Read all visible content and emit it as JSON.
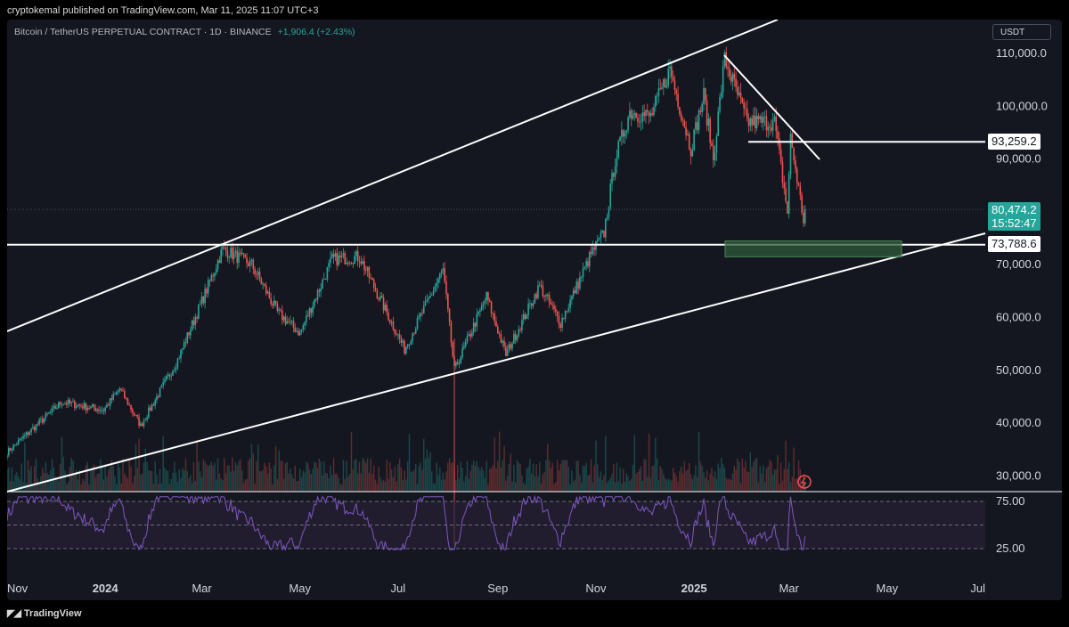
{
  "publisher_line": "cryptokemal published on TradingView.com, Mar 11, 2025 11:07 UTC+3",
  "symbol": {
    "description": "Bitcoin / TetherUS PERPETUAL CONTRACT · 1D · BINANCE",
    "change": "+1,906.4 (+2.43%)"
  },
  "currency_button": "USDT",
  "footer": {
    "logo_icon": "tradingview-logo-icon",
    "brand": "TradingView"
  },
  "colors": {
    "background": "#151720",
    "up": "#26a69a",
    "down": "#ef5350",
    "rsi_line": "#7e57c2",
    "rsi_band": "#2a2238",
    "drawing": "#ffffff",
    "zone": "#2e5a38"
  },
  "price_labels": {
    "level_93259": "93,259.2",
    "current_price": "80,474.2",
    "countdown": "15:52:47",
    "level_73788": "73,788.6"
  },
  "chart_data": [
    {
      "type": "candlestick",
      "title": "Bitcoin / TetherUS PERPETUAL CONTRACT · 1D · BINANCE",
      "x_ticks": [
        "Nov",
        "2024",
        "Mar",
        "May",
        "Jul",
        "Sep",
        "Nov",
        "2025",
        "Mar",
        "May",
        "Jul"
      ],
      "y_ticks": [
        "110,000.0",
        "100,000.0",
        "90,000.0",
        "80,000.0",
        "70,000.0",
        "60,000.0",
        "50,000.0",
        "40,000.0",
        "30,000.0"
      ],
      "ylim": [
        28000,
        112000
      ],
      "grid": false,
      "approx_path": [
        [
          "2023-11-01",
          34500
        ],
        [
          "2023-12-05",
          44000
        ],
        [
          "2023-12-31",
          42500
        ],
        [
          "2024-01-10",
          46500
        ],
        [
          "2024-01-23",
          39500
        ],
        [
          "2024-02-15",
          52000
        ],
        [
          "2024-03-05",
          66000
        ],
        [
          "2024-03-14",
          73000
        ],
        [
          "2024-04-01",
          70000
        ],
        [
          "2024-04-17",
          61000
        ],
        [
          "2024-05-01",
          57000
        ],
        [
          "2024-05-21",
          71000
        ],
        [
          "2024-06-07",
          71500
        ],
        [
          "2024-07-05",
          54000
        ],
        [
          "2024-07-29",
          69000
        ],
        [
          "2024-08-05",
          50000
        ],
        [
          "2024-08-25",
          64000
        ],
        [
          "2024-09-06",
          53000
        ],
        [
          "2024-09-27",
          66000
        ],
        [
          "2024-10-10",
          59000
        ],
        [
          "2024-10-29",
          72000
        ],
        [
          "2024-11-06",
          76000
        ],
        [
          "2024-11-13",
          90000
        ],
        [
          "2024-11-22",
          99000
        ],
        [
          "2024-12-05",
          98000
        ],
        [
          "2024-12-17",
          107000
        ],
        [
          "2024-12-30",
          92000
        ],
        [
          "2025-01-07",
          102000
        ],
        [
          "2025-01-13",
          90000
        ],
        [
          "2025-01-20",
          109000
        ],
        [
          "2025-02-03",
          97000
        ],
        [
          "2025-02-20",
          97000
        ],
        [
          "2025-02-28",
          80000
        ],
        [
          "2025-03-02",
          94000
        ],
        [
          "2025-03-10",
          78500
        ],
        [
          "2025-03-11",
          80474
        ]
      ],
      "key_levels": [
        93259.2,
        73788.6
      ],
      "current_price": 80474.2,
      "support_zone": [
        71500,
        74500
      ]
    },
    {
      "type": "line",
      "title": "RSI",
      "y_ticks": [
        "75.00",
        "25.00"
      ],
      "bands": [
        25,
        50,
        75
      ]
    }
  ]
}
